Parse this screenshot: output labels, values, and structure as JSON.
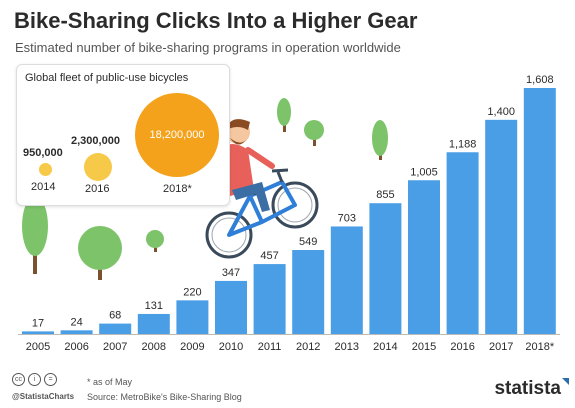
{
  "header": {
    "title": "Bike-Sharing Clicks Into a Higher Gear",
    "subtitle": "Estimated number of bike-sharing programs in operation worldwide"
  },
  "inset": {
    "title": "Global fleet of public-use bicycles",
    "items": [
      {
        "year": "2014",
        "value": "950,000",
        "number": 950000
      },
      {
        "year": "2016",
        "value": "2,300,000",
        "number": 2300000
      },
      {
        "year": "2018*",
        "value": "18,200,000",
        "number": 18200000
      }
    ]
  },
  "footer": {
    "note": "* as of May",
    "source": "Source: MetroBike's Bike-Sharing Blog",
    "handle": "@StatistaCharts",
    "brand": "statista",
    "license_icons": [
      "cc-icon",
      "by-icon",
      "nd-icon"
    ]
  },
  "colors": {
    "bar": "#4a9ee6",
    "small_circle": "#f7c948",
    "large_circle": "#f4a21b",
    "tree": "#7dc36a",
    "trunk": "#7a5230"
  },
  "chart_data": {
    "type": "bar",
    "categories": [
      "2005",
      "2006",
      "2007",
      "2008",
      "2009",
      "2010",
      "2011",
      "2012",
      "2013",
      "2014",
      "2015",
      "2016",
      "2017",
      "2018*"
    ],
    "values": [
      17,
      24,
      68,
      131,
      220,
      347,
      457,
      549,
      703,
      855,
      1005,
      1188,
      1400,
      1608
    ],
    "value_labels": [
      "17",
      "24",
      "68",
      "131",
      "220",
      "347",
      "457",
      "549",
      "703",
      "855",
      "1,005",
      "1,188",
      "1,400",
      "1,608"
    ],
    "title": "Bike-Sharing Clicks Into a Higher Gear",
    "subtitle": "Estimated number of bike-sharing programs in operation worldwide",
    "ylim": [
      0,
      1608
    ],
    "grid": false
  }
}
